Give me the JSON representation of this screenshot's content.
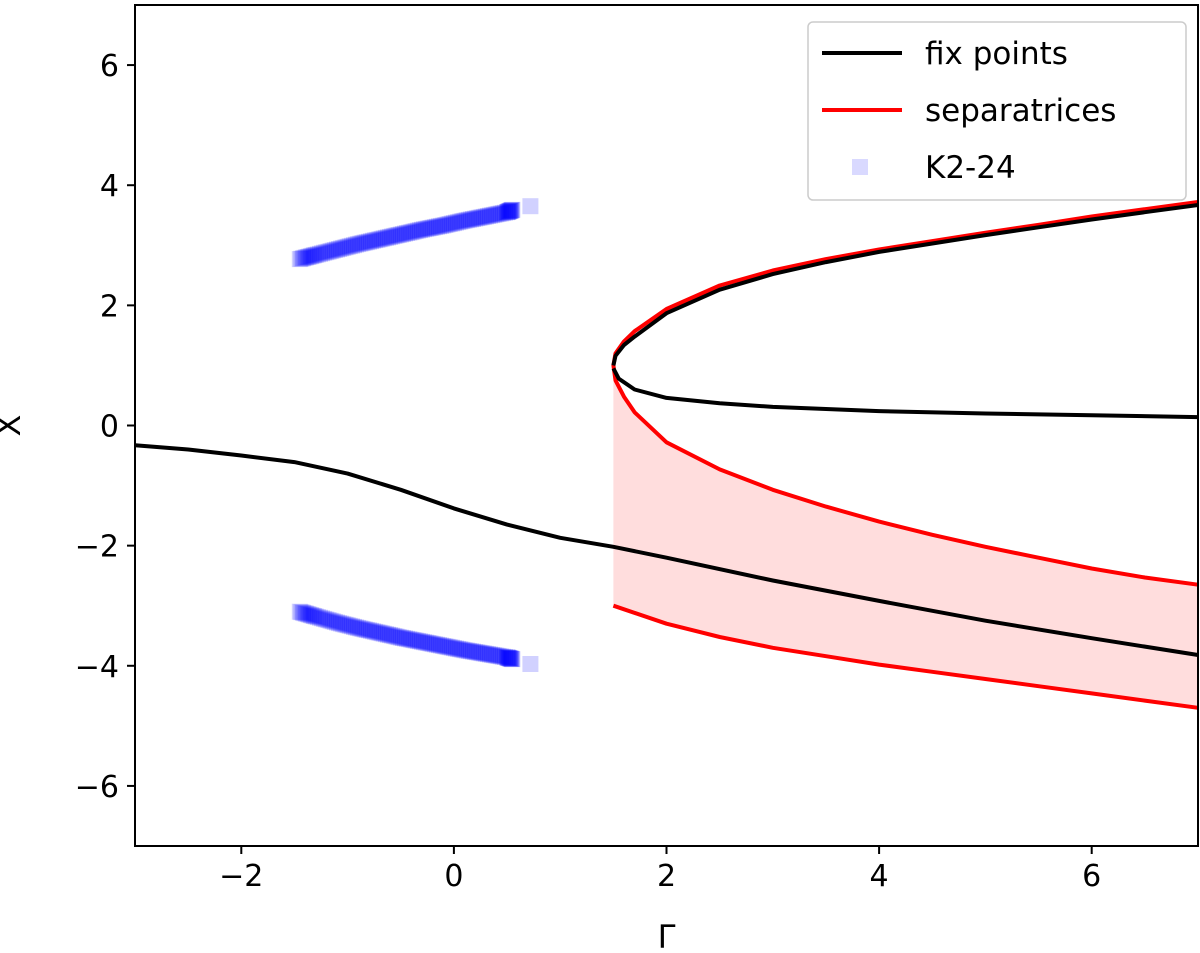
{
  "chart_data": {
    "type": "line",
    "xlabel": "Γ",
    "ylabel": "X",
    "xlim": [
      -3,
      7
    ],
    "ylim": [
      -7,
      7
    ],
    "xticks": [
      {
        "value": -2,
        "label": "−2"
      },
      {
        "value": 0,
        "label": "0"
      },
      {
        "value": 2,
        "label": "2"
      },
      {
        "value": 4,
        "label": "4"
      },
      {
        "value": 6,
        "label": "6"
      }
    ],
    "yticks": [
      {
        "value": 6,
        "label": "6"
      },
      {
        "value": 4,
        "label": "4"
      },
      {
        "value": 2,
        "label": "2"
      },
      {
        "value": 0,
        "label": "0"
      },
      {
        "value": -2,
        "label": "−2"
      },
      {
        "value": -4,
        "label": "−4"
      },
      {
        "value": -6,
        "label": "−6"
      }
    ],
    "grid": false,
    "legend_position": "top-right",
    "legend": [
      {
        "label": "fix points",
        "kind": "line",
        "color": "#000000"
      },
      {
        "label": "separatrices",
        "kind": "line",
        "color": "#ff0000"
      },
      {
        "label": "K2-24",
        "kind": "marker",
        "color": "#0000ff"
      }
    ],
    "fix_points": {
      "color": "#000000",
      "lower_branch": {
        "x": [
          -3,
          -2.5,
          -2,
          -1.5,
          -1,
          -0.5,
          0,
          0.5,
          1,
          1.5,
          2,
          3,
          4,
          5,
          6,
          7
        ],
        "y": [
          -0.33,
          -0.4,
          -0.5,
          -0.61,
          -0.8,
          -1.07,
          -1.38,
          -1.65,
          -1.87,
          -2.02,
          -2.2,
          -2.58,
          -2.92,
          -3.25,
          -3.54,
          -3.82
        ]
      },
      "upper_branch": {
        "x": [
          1.5,
          1.52,
          1.6,
          1.7,
          2,
          2.5,
          3,
          3.5,
          4,
          4.5,
          5,
          5.5,
          6,
          6.5,
          7
        ],
        "y": [
          1.0,
          1.16,
          1.34,
          1.48,
          1.87,
          2.26,
          2.52,
          2.72,
          2.89,
          3.03,
          3.17,
          3.3,
          3.43,
          3.55,
          3.67
        ]
      },
      "middle_branch": {
        "x": [
          1.5,
          1.55,
          1.7,
          2,
          2.5,
          3,
          4,
          5,
          6,
          7
        ],
        "y": [
          0.95,
          0.78,
          0.6,
          0.46,
          0.37,
          0.31,
          0.24,
          0.2,
          0.17,
          0.14
        ]
      }
    },
    "separatrices": {
      "color": "#ff0000",
      "upper_curve": {
        "x": [
          7,
          6.5,
          6,
          5.5,
          5,
          4.5,
          4,
          3.5,
          3,
          2.5,
          2,
          1.7,
          1.6,
          1.52,
          1.5,
          1.52,
          1.6,
          1.7,
          2,
          2.5,
          3,
          3.5,
          4,
          4.5,
          5,
          5.5,
          6,
          6.5,
          7
        ],
        "y": [
          3.72,
          3.6,
          3.48,
          3.34,
          3.21,
          3.07,
          2.93,
          2.77,
          2.58,
          2.33,
          1.94,
          1.57,
          1.4,
          1.2,
          1.0,
          0.75,
          0.48,
          0.22,
          -0.28,
          -0.73,
          -1.07,
          -1.35,
          -1.6,
          -1.82,
          -2.02,
          -2.2,
          -2.38,
          -2.53,
          -2.65
        ]
      },
      "lower_curve": {
        "x": [
          1.5,
          2,
          2.5,
          3,
          3.5,
          4,
          4.5,
          5,
          5.5,
          6,
          6.5,
          7
        ],
        "y": [
          -3.0,
          -3.3,
          -3.52,
          -3.7,
          -3.84,
          -3.98,
          -4.1,
          -4.22,
          -4.34,
          -4.46,
          -4.58,
          -4.7
        ]
      },
      "shaded_region": {
        "color": "#ffdddd",
        "x_start": 1.5,
        "x_end": 7
      }
    },
    "k2_24": {
      "color": "#0000ff",
      "upper_cluster": {
        "x": [
          -1.45,
          -1.3,
          -1.1,
          -0.9,
          -0.7,
          -0.5,
          -0.3,
          -0.1,
          0.1,
          0.3,
          0.5,
          0.55,
          0.72
        ],
        "y": [
          2.77,
          2.84,
          2.93,
          3.02,
          3.1,
          3.18,
          3.26,
          3.33,
          3.41,
          3.48,
          3.55,
          3.59,
          3.65
        ]
      },
      "lower_cluster": {
        "x": [
          -1.45,
          -1.3,
          -1.1,
          -0.9,
          -0.7,
          -0.5,
          -0.3,
          -0.1,
          0.1,
          0.3,
          0.5,
          0.55,
          0.72
        ],
        "y": [
          -3.1,
          -3.18,
          -3.28,
          -3.37,
          -3.45,
          -3.53,
          -3.6,
          -3.67,
          -3.74,
          -3.8,
          -3.86,
          -3.89,
          -3.97
        ]
      }
    }
  }
}
